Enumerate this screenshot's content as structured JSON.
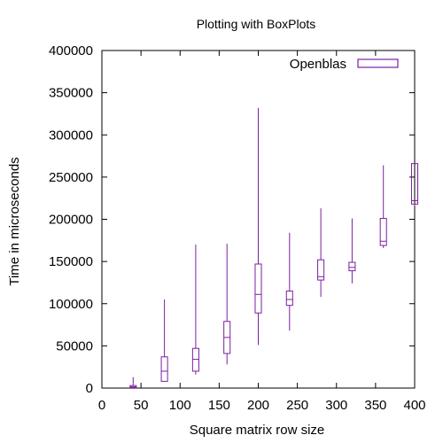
{
  "chart_data": {
    "type": "boxplot",
    "title": "Plotting with BoxPlots",
    "xlabel": "Square matrix row size",
    "ylabel": "Time in microseconds",
    "xlim": [
      0,
      400
    ],
    "ylim": [
      0,
      400000
    ],
    "x_ticks": [
      0,
      50,
      100,
      150,
      200,
      250,
      300,
      350,
      400
    ],
    "y_ticks": [
      0,
      50000,
      100000,
      150000,
      200000,
      250000,
      300000,
      350000,
      400000
    ],
    "grid": false,
    "legend_position": "top-right",
    "series": [
      {
        "name": "Openblas",
        "color": "#7B1FA2",
        "boxes": [
          {
            "x": 40,
            "min": 200,
            "q1": 500,
            "median": 1500,
            "q3": 3000,
            "max": 13000
          },
          {
            "x": 80,
            "min": 8000,
            "q1": 8000,
            "median": 20000,
            "q3": 37000,
            "max": 105000
          },
          {
            "x": 120,
            "min": 16000,
            "q1": 20000,
            "median": 34000,
            "q3": 47000,
            "max": 170000
          },
          {
            "x": 160,
            "min": 28000,
            "q1": 41000,
            "median": 60000,
            "q3": 79000,
            "max": 171000
          },
          {
            "x": 200,
            "min": 51000,
            "q1": 89000,
            "median": 111000,
            "q3": 147000,
            "max": 332000
          },
          {
            "x": 240,
            "min": 68000,
            "q1": 98000,
            "median": 105000,
            "q3": 115000,
            "max": 184000
          },
          {
            "x": 280,
            "min": 108000,
            "q1": 128000,
            "median": 132000,
            "q3": 152000,
            "max": 213000
          },
          {
            "x": 320,
            "min": 124000,
            "q1": 139000,
            "median": 143000,
            "q3": 149000,
            "max": 201000
          },
          {
            "x": 360,
            "min": 166000,
            "q1": 169000,
            "median": 174000,
            "q3": 201000,
            "max": 264000
          },
          {
            "x": 400,
            "min": 216000,
            "q1": 218000,
            "median": 222000,
            "q3": 266000,
            "max": 266000
          }
        ]
      }
    ]
  }
}
